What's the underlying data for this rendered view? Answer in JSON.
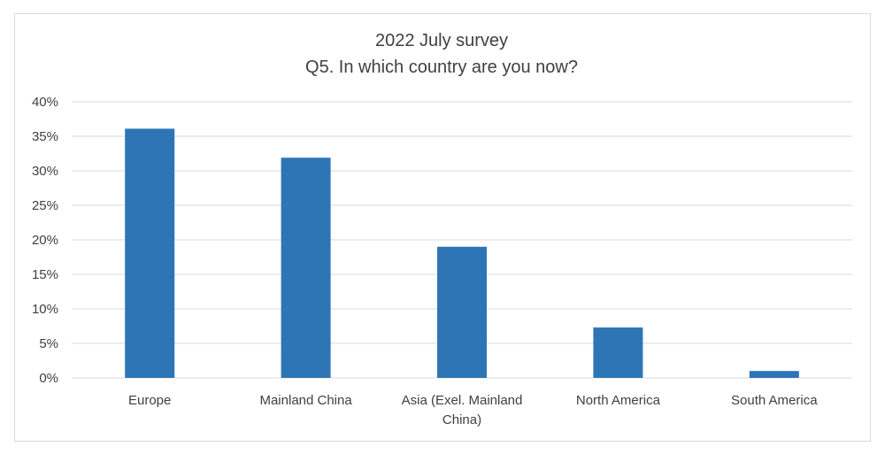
{
  "chart_data": {
    "type": "bar",
    "title": "2022 July survey",
    "subtitle": "Q5. In which country are you now?",
    "xlabel": "",
    "ylabel": "",
    "categories": [
      [
        "Europe"
      ],
      [
        "Mainland China"
      ],
      [
        "Asia (Exel. Mainland",
        "China)"
      ],
      [
        "North America"
      ],
      [
        "South America"
      ]
    ],
    "values": [
      36.1,
      31.9,
      19.0,
      7.3,
      1.0
    ],
    "ylim": [
      0,
      40
    ],
    "yticks": [
      0,
      5,
      10,
      15,
      20,
      25,
      30,
      35,
      40
    ],
    "ytick_format": "percent",
    "grid": true,
    "legend": "none",
    "bar_color": "#2e75b6",
    "grid_color": "#d9d9d9",
    "text_color": "#404040"
  }
}
